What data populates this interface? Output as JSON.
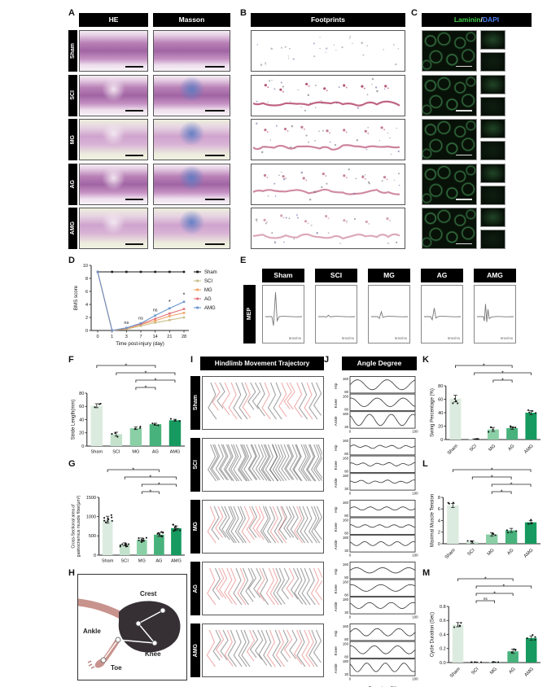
{
  "groups": [
    "Sham",
    "SCI",
    "MG",
    "AG",
    "AMG"
  ],
  "panels": {
    "A": {
      "letter": "A",
      "headers": [
        "HE",
        "Masson"
      ],
      "rows": [
        "Sham",
        "SCI",
        "MG",
        "AG",
        "AMG"
      ]
    },
    "B": {
      "letter": "B",
      "header": "Footprints"
    },
    "C": {
      "letter": "C",
      "title_laminin": "Laminin",
      "title_slash": "/",
      "title_dapi": "DAPI"
    },
    "D": {
      "letter": "D"
    },
    "E": {
      "letter": "E",
      "label": "MEP"
    },
    "F": {
      "letter": "F"
    },
    "G": {
      "letter": "G"
    },
    "H": {
      "letter": "H",
      "labels": {
        "crest": "Crest",
        "ankle": "Ankle",
        "knee": "Knee",
        "toe": "Toe"
      }
    },
    "I": {
      "letter": "I",
      "header": "Hindlimb Movement Trajectory"
    },
    "J": {
      "letter": "J",
      "header": "Angle Degree"
    },
    "K": {
      "letter": "K"
    },
    "L": {
      "letter": "L"
    },
    "M": {
      "letter": "M"
    }
  },
  "colors": {
    "bar_greens": [
      "#dcebdf",
      "#c3e1cb",
      "#8bcfa6",
      "#48b27c",
      "#169a5f"
    ],
    "drag_line": "#b5496f",
    "trace": "#777777"
  },
  "chart_data": [
    {
      "id": "D",
      "type": "line",
      "ylabel": "BMS score",
      "xlabel": "Time post-injury (day)",
      "x_ticks": [
        "0",
        "1",
        "3",
        "7",
        "14",
        "21",
        "28"
      ],
      "ylim": [
        0,
        10
      ],
      "yticks": [
        0,
        2,
        4,
        6,
        8,
        10
      ],
      "legend_position": "right",
      "series": [
        {
          "name": "Sham",
          "color": "#1a1a1a",
          "values": [
            9,
            9,
            9,
            9,
            9,
            9,
            9
          ]
        },
        {
          "name": "SCI",
          "color": "#c7bd86",
          "values": [
            9,
            0,
            0.2,
            0.7,
            1.2,
            1.6,
            2.0
          ]
        },
        {
          "name": "MG",
          "color": "#f0a160",
          "values": [
            9,
            0,
            0.3,
            0.9,
            1.5,
            2.2,
            2.7
          ]
        },
        {
          "name": "AG",
          "color": "#e2737b",
          "values": [
            9,
            0,
            0.4,
            1.0,
            1.8,
            2.6,
            3.3
          ]
        },
        {
          "name": "AMG",
          "color": "#6b95cc",
          "values": [
            9,
            0,
            0.4,
            1.1,
            2.3,
            3.4,
            4.4
          ]
        }
      ],
      "annotations": [
        {
          "xi": 2,
          "y": 1.0,
          "text": "ns"
        },
        {
          "xi": 3,
          "y": 1.7,
          "text": "ns"
        },
        {
          "xi": 4,
          "y": 2.95,
          "text": "ns"
        },
        {
          "xi": 5,
          "y": 4.1,
          "text": "*"
        },
        {
          "xi": 6,
          "y": 5.2,
          "text": "*"
        }
      ]
    },
    {
      "id": "F",
      "type": "bar",
      "ylabel": "Stride Length(mm)",
      "categories": [
        "Sham",
        "SCI",
        "MG",
        "AG",
        "AMG"
      ],
      "values": [
        61,
        18,
        27,
        33,
        39
      ],
      "errors": [
        3,
        3,
        2,
        1.5,
        1.5
      ],
      "ylim": [
        0,
        80
      ],
      "yticks": [
        0,
        20,
        40,
        60,
        80
      ],
      "dots": 3,
      "rotate_xticks": false,
      "brackets": [
        {
          "a": 0,
          "b": 3,
          "level": 0,
          "label": "*"
        },
        {
          "a": 1,
          "b": 4,
          "level": 1,
          "label": "*"
        },
        {
          "a": 2,
          "b": 4,
          "level": 2,
          "label": "*"
        },
        {
          "a": 2,
          "b": 3,
          "level": 3,
          "label": "*"
        }
      ]
    },
    {
      "id": "G",
      "type": "bar",
      "ylabel": "Cross-Sectional area of\ngastrocnemius muscle fiber(μm²)",
      "categories": [
        "Sham",
        "SCI",
        "MG",
        "AG",
        "AMG"
      ],
      "values": [
        920,
        280,
        400,
        530,
        700
      ],
      "errors": [
        90,
        40,
        45,
        45,
        60
      ],
      "ylim": [
        0,
        1500
      ],
      "yticks": [
        0,
        500,
        1000,
        1500
      ],
      "dots": 9,
      "rotate_xticks": false,
      "brackets": [
        {
          "a": 0,
          "b": 3,
          "level": 0,
          "label": "*"
        },
        {
          "a": 1,
          "b": 4,
          "level": 1,
          "label": "*"
        },
        {
          "a": 2,
          "b": 4,
          "level": 2,
          "label": "*"
        },
        {
          "a": 2,
          "b": 3,
          "level": 3,
          "label": "*"
        }
      ]
    },
    {
      "id": "K",
      "type": "bar",
      "ylabel": "Swing Percentage (%)",
      "categories": [
        "Sham",
        "SCI",
        "MG",
        "AG",
        "AMG"
      ],
      "values": [
        61,
        0.5,
        15,
        17,
        40
      ],
      "errors": [
        5,
        0.5,
        3,
        2,
        3
      ],
      "ylim": [
        0,
        80
      ],
      "yticks": [
        0,
        20,
        40,
        60,
        80
      ],
      "dots": 4,
      "rotate_xticks": true,
      "brackets": [
        {
          "a": 0,
          "b": 3,
          "level": 0,
          "label": "*"
        },
        {
          "a": 1,
          "b": 4,
          "level": 1,
          "label": "*"
        },
        {
          "a": 2,
          "b": 3,
          "level": 2,
          "label": "*"
        }
      ]
    },
    {
      "id": "L",
      "type": "bar",
      "ylabel": "Maximal Muscle Tension",
      "categories": [
        "Sham",
        "SCI",
        "MG",
        "AG",
        "AMG"
      ],
      "values": [
        6.6,
        0.3,
        1.6,
        2.3,
        3.7
      ],
      "errors": [
        0.35,
        0.2,
        0.3,
        0.35,
        0.3
      ],
      "ylim": [
        0,
        8
      ],
      "yticks": [
        0,
        2,
        4,
        6,
        8
      ],
      "dots": 3,
      "rotate_xticks": true,
      "brackets": [
        {
          "a": 0,
          "b": 4,
          "level": 0,
          "label": "*"
        },
        {
          "a": 1,
          "b": 3,
          "level": 1,
          "label": "*"
        },
        {
          "a": 2,
          "b": 4,
          "level": 2,
          "label": "*"
        },
        {
          "a": 2,
          "b": 3,
          "level": 3,
          "label": "*"
        }
      ]
    },
    {
      "id": "M",
      "type": "bar",
      "ylabel": "Cycle Duration (Sec)",
      "categories": [
        "Sham",
        "SCI",
        "MG",
        "AG",
        "AMG"
      ],
      "values": [
        0.54,
        0.005,
        0.005,
        0.16,
        0.35
      ],
      "errors": [
        0.03,
        0.004,
        0.004,
        0.03,
        0.03
      ],
      "ylim": [
        0,
        0.8
      ],
      "yticks": [
        0,
        0.2,
        0.4,
        0.6,
        0.8
      ],
      "ytick_labels": [
        "0.0",
        "0.2",
        "0.4",
        "0.6",
        "0.8"
      ],
      "dots": 4,
      "rotate_xticks": true,
      "brackets": [
        {
          "a": 0,
          "b": 3,
          "level": 0,
          "label": "*"
        },
        {
          "a": 1,
          "b": 4,
          "level": 1,
          "label": "*"
        },
        {
          "a": 1,
          "b": 3,
          "level": 2,
          "label": "*"
        },
        {
          "a": 1,
          "b": 2,
          "level": 3,
          "label": "ns"
        }
      ]
    },
    {
      "id": "J",
      "type": "multi-line",
      "header": "Angle Degree",
      "xlabel": "Percentage(%)",
      "x_ticks": [
        "0",
        "100"
      ],
      "joints": [
        {
          "label": "Hip",
          "ymax": "160",
          "ymin": "80"
        },
        {
          "label": "Knee",
          "ymax": "160",
          "ymin": "80"
        },
        {
          "label": "Ankle",
          "ymax": "180",
          "ymin": "30"
        }
      ],
      "groups": [
        {
          "name": "Sham",
          "waves": [
            [
              0.75,
              2.2
            ],
            [
              0.65,
              2.5
            ],
            [
              0.85,
              3.0
            ]
          ]
        },
        {
          "name": "SCI",
          "waves": [
            [
              0.05,
              3.0
            ],
            [
              0.05,
              3.0
            ],
            [
              0.05,
              3.0
            ]
          ]
        },
        {
          "name": "MG",
          "waves": [
            [
              0.25,
              4.0
            ],
            [
              0.2,
              4.5
            ],
            [
              0.3,
              4.0
            ]
          ]
        },
        {
          "name": "AG",
          "waves": [
            [
              0.4,
              2.5
            ],
            [
              0.5,
              2.2
            ],
            [
              0.45,
              3.0
            ]
          ]
        },
        {
          "name": "AMG",
          "waves": [
            [
              0.55,
              3.0
            ],
            [
              0.6,
              2.8
            ],
            [
              0.65,
              3.5
            ]
          ]
        }
      ]
    },
    {
      "id": "E",
      "type": "trace",
      "scale_label": "5mv/ms",
      "groups": [
        {
          "name": "Sham",
          "amp": 1.0,
          "double": false
        },
        {
          "name": "SCI",
          "amp": 0.06,
          "double": false
        },
        {
          "name": "MG",
          "amp": 0.2,
          "double": false
        },
        {
          "name": "AG",
          "amp": 0.35,
          "double": false
        },
        {
          "name": "AMG",
          "amp": 0.6,
          "double": true
        }
      ]
    },
    {
      "id": "I",
      "type": "trajectory",
      "groups": [
        {
          "name": "Sham",
          "lift": 16,
          "red": 0.5,
          "strokes": 22
        },
        {
          "name": "SCI",
          "lift": 2,
          "red": 0.06,
          "strokes": 42
        },
        {
          "name": "MG",
          "lift": 8,
          "red": 0.3,
          "strokes": 32
        },
        {
          "name": "AG",
          "lift": 11,
          "red": 0.35,
          "strokes": 27
        },
        {
          "name": "AMG",
          "lift": 13,
          "red": 0.42,
          "strokes": 26
        }
      ]
    },
    {
      "id": "B",
      "type": "footprints",
      "rows": [
        {
          "name": "Sham",
          "drag_line": false,
          "specks": 30,
          "strength": 0.5
        },
        {
          "name": "SCI",
          "drag_line": true,
          "specks": 26,
          "strength": 1.0
        },
        {
          "name": "MG",
          "drag_line": true,
          "specks": 24,
          "strength": 0.8
        },
        {
          "name": "AG",
          "drag_line": true,
          "specks": 22,
          "strength": 0.75
        },
        {
          "name": "AMG",
          "drag_line": true,
          "specks": 20,
          "strength": 0.55
        }
      ]
    }
  ]
}
